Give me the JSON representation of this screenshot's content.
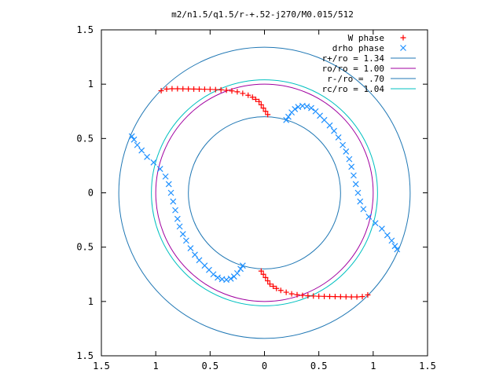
{
  "chart_data": {
    "type": "scatter",
    "title": "m2/n1.5/q1.5/r-+.52-j270/M0.015/512",
    "xlim": [
      -1.5,
      1.5
    ],
    "ylim": [
      -1.5,
      1.5
    ],
    "x_ticks": [
      -1.5,
      -1,
      -0.5,
      0,
      0.5,
      1,
      1.5
    ],
    "x_tick_labels": [
      "1.5",
      "1",
      "0.5",
      "0",
      "0.5",
      "1",
      "1.5"
    ],
    "y_ticks": [
      1.5,
      1,
      0.5,
      0,
      -0.5,
      -1,
      -1.5
    ],
    "y_tick_labels": [
      "1.5",
      "1",
      "0.5",
      "0",
      "0.5",
      "1",
      "1.5"
    ],
    "grid": false,
    "legend_position": "top-right",
    "circles": [
      {
        "label": "r+/ro = 1.34",
        "radius": 1.34,
        "color": "#1f77b4"
      },
      {
        "label": "ro/ro = 1.00",
        "radius": 1.0,
        "color": "#a000a0"
      },
      {
        "label": "r-/ro = .70",
        "radius": 0.7,
        "color": "#1f77b4"
      },
      {
        "label": "rc/ro = 1.04",
        "radius": 1.04,
        "color": "#00c0c0"
      }
    ],
    "series": [
      {
        "name": "W phase",
        "marker": "+",
        "color": "#ff0000",
        "points": [
          [
            -0.95,
            0.94
          ],
          [
            -0.9,
            0.955
          ],
          [
            -0.85,
            0.958
          ],
          [
            -0.8,
            0.958
          ],
          [
            -0.75,
            0.957
          ],
          [
            -0.7,
            0.956
          ],
          [
            -0.65,
            0.955
          ],
          [
            -0.6,
            0.954
          ],
          [
            -0.55,
            0.953
          ],
          [
            -0.5,
            0.952
          ],
          [
            -0.45,
            0.95
          ],
          [
            -0.4,
            0.948
          ],
          [
            -0.35,
            0.944
          ],
          [
            -0.3,
            0.938
          ],
          [
            -0.25,
            0.93
          ],
          [
            -0.2,
            0.915
          ],
          [
            -0.15,
            0.898
          ],
          [
            -0.11,
            0.88
          ],
          [
            -0.08,
            0.86
          ],
          [
            -0.05,
            0.84
          ],
          [
            -0.03,
            0.81
          ],
          [
            -0.01,
            0.78
          ],
          [
            0.01,
            0.75
          ],
          [
            0.03,
            0.72
          ],
          [
            0.95,
            -0.94
          ],
          [
            0.9,
            -0.955
          ],
          [
            0.85,
            -0.958
          ],
          [
            0.8,
            -0.958
          ],
          [
            0.75,
            -0.957
          ],
          [
            0.7,
            -0.956
          ],
          [
            0.65,
            -0.955
          ],
          [
            0.6,
            -0.954
          ],
          [
            0.55,
            -0.953
          ],
          [
            0.5,
            -0.952
          ],
          [
            0.45,
            -0.95
          ],
          [
            0.4,
            -0.948
          ],
          [
            0.35,
            -0.944
          ],
          [
            0.3,
            -0.938
          ],
          [
            0.25,
            -0.93
          ],
          [
            0.2,
            -0.915
          ],
          [
            0.15,
            -0.898
          ],
          [
            0.11,
            -0.88
          ],
          [
            0.08,
            -0.86
          ],
          [
            0.05,
            -0.84
          ],
          [
            0.03,
            -0.81
          ],
          [
            0.01,
            -0.78
          ],
          [
            -0.01,
            -0.75
          ],
          [
            -0.03,
            -0.72
          ]
        ]
      },
      {
        "name": "drho phase",
        "marker": "x",
        "color": "#1e90ff",
        "points": [
          [
            0.2,
            0.67
          ],
          [
            0.22,
            0.7
          ],
          [
            0.25,
            0.74
          ],
          [
            0.28,
            0.77
          ],
          [
            0.31,
            0.79
          ],
          [
            0.35,
            0.8
          ],
          [
            0.39,
            0.795
          ],
          [
            0.43,
            0.78
          ],
          [
            0.47,
            0.75
          ],
          [
            0.51,
            0.71
          ],
          [
            0.55,
            0.67
          ],
          [
            0.6,
            0.62
          ],
          [
            0.64,
            0.57
          ],
          [
            0.68,
            0.51
          ],
          [
            0.72,
            0.44
          ],
          [
            0.75,
            0.38
          ],
          [
            0.78,
            0.31
          ],
          [
            0.8,
            0.24
          ],
          [
            0.82,
            0.16
          ],
          [
            0.84,
            0.08
          ],
          [
            0.86,
            0.0
          ],
          [
            0.88,
            -0.08
          ],
          [
            0.91,
            -0.15
          ],
          [
            0.96,
            -0.22
          ],
          [
            1.02,
            -0.28
          ],
          [
            1.08,
            -0.33
          ],
          [
            1.13,
            -0.39
          ],
          [
            1.17,
            -0.44
          ],
          [
            1.2,
            -0.49
          ],
          [
            1.22,
            -0.52
          ],
          [
            -0.2,
            -0.67
          ],
          [
            -0.22,
            -0.7
          ],
          [
            -0.25,
            -0.74
          ],
          [
            -0.28,
            -0.77
          ],
          [
            -0.31,
            -0.79
          ],
          [
            -0.35,
            -0.8
          ],
          [
            -0.39,
            -0.795
          ],
          [
            -0.43,
            -0.78
          ],
          [
            -0.47,
            -0.75
          ],
          [
            -0.51,
            -0.71
          ],
          [
            -0.55,
            -0.67
          ],
          [
            -0.6,
            -0.62
          ],
          [
            -0.64,
            -0.57
          ],
          [
            -0.68,
            -0.51
          ],
          [
            -0.72,
            -0.44
          ],
          [
            -0.75,
            -0.38
          ],
          [
            -0.78,
            -0.31
          ],
          [
            -0.8,
            -0.24
          ],
          [
            -0.82,
            -0.16
          ],
          [
            -0.84,
            -0.08
          ],
          [
            -0.86,
            0.0
          ],
          [
            -0.88,
            0.08
          ],
          [
            -0.91,
            0.15
          ],
          [
            -0.96,
            0.22
          ],
          [
            -1.02,
            0.28
          ],
          [
            -1.08,
            0.33
          ],
          [
            -1.13,
            0.39
          ],
          [
            -1.17,
            0.44
          ],
          [
            -1.2,
            0.49
          ],
          [
            -1.22,
            0.52
          ]
        ]
      }
    ]
  }
}
